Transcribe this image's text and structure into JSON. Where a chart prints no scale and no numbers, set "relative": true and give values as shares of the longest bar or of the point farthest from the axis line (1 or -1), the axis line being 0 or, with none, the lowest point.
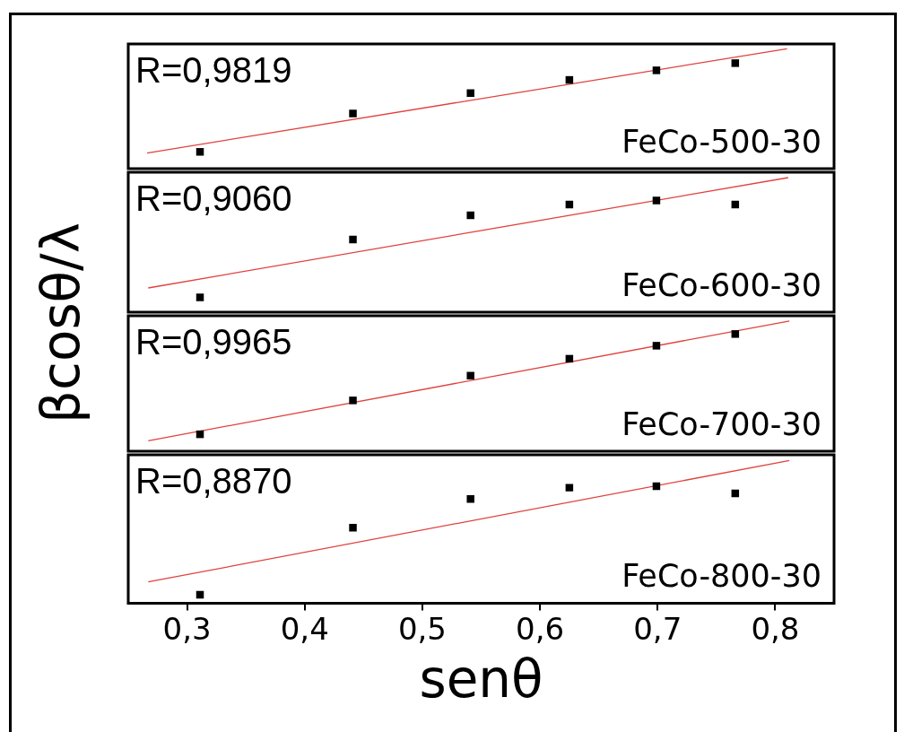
{
  "chart_data": [
    {
      "type": "scatter",
      "relative": true,
      "ylabel": "βcosθ/λ",
      "xlim": [
        0.25,
        0.85
      ],
      "tick_labels": false,
      "annotations": [
        "R=0,9819",
        "FeCo-500-30"
      ],
      "series": [
        {
          "marker": "square",
          "color": "#000000",
          "x": [
            0.311,
            0.441,
            0.541,
            0.625,
            0.699,
            0.766
          ],
          "values": [
            0.14,
            0.46,
            0.63,
            0.74,
            0.82,
            0.88
          ]
        },
        {
          "type": "line",
          "marker": "none",
          "color": "#e0413c",
          "x": [
            0.266,
            0.81
          ],
          "values": [
            0.13,
            1
          ]
        }
      ]
    },
    {
      "type": "scatter",
      "relative": true,
      "xlim": [
        0.25,
        0.85
      ],
      "tick_labels": false,
      "annotations": [
        "R=0,9060",
        "FeCo-600-30"
      ],
      "series": [
        {
          "marker": "square",
          "color": "#000000",
          "x": [
            0.311,
            0.441,
            0.541,
            0.625,
            0.699,
            0.766
          ],
          "values": [
            0.11,
            0.54,
            0.72,
            0.8,
            0.83,
            0.8
          ]
        },
        {
          "type": "line",
          "marker": "none",
          "color": "#e0413c",
          "x": [
            0.267,
            0.811
          ],
          "values": [
            0.18,
            1
          ]
        }
      ]
    },
    {
      "type": "scatter",
      "relative": true,
      "xlim": [
        0.25,
        0.85
      ],
      "tick_labels": false,
      "annotations": [
        "R=0,9965",
        "FeCo-700-30"
      ],
      "series": [
        {
          "marker": "square",
          "color": "#000000",
          "x": [
            0.311,
            0.441,
            0.541,
            0.625,
            0.699,
            0.766
          ],
          "values": [
            0.13,
            0.39,
            0.58,
            0.71,
            0.81,
            0.9
          ]
        },
        {
          "type": "line",
          "marker": "none",
          "color": "#e0413c",
          "x": [
            0.267,
            0.812
          ],
          "values": [
            0.08,
            1
          ]
        }
      ]
    },
    {
      "type": "scatter",
      "relative": true,
      "xlabel": "senθ",
      "xlim": [
        0.25,
        0.85
      ],
      "xticks": [
        {
          "value": 0.3,
          "label": "0,3"
        },
        {
          "value": 0.4,
          "label": "0,4"
        },
        {
          "value": 0.5,
          "label": "0,5"
        },
        {
          "value": 0.6,
          "label": "0,6"
        },
        {
          "value": 0.7,
          "label": "0,7"
        },
        {
          "value": 0.8,
          "label": "0,8"
        }
      ],
      "tick_labels": "x",
      "annotations": [
        "R=0,8870",
        "FeCo-800-30"
      ],
      "series": [
        {
          "marker": "square",
          "color": "#000000",
          "x": [
            0.311,
            0.441,
            0.541,
            0.625,
            0.699,
            0.766
          ],
          "values": [
            0.06,
            0.53,
            0.73,
            0.81,
            0.82,
            0.77
          ]
        },
        {
          "type": "line",
          "marker": "none",
          "color": "#e0413c",
          "x": [
            0.267,
            0.812
          ],
          "values": [
            0.15,
            1
          ]
        }
      ]
    }
  ]
}
